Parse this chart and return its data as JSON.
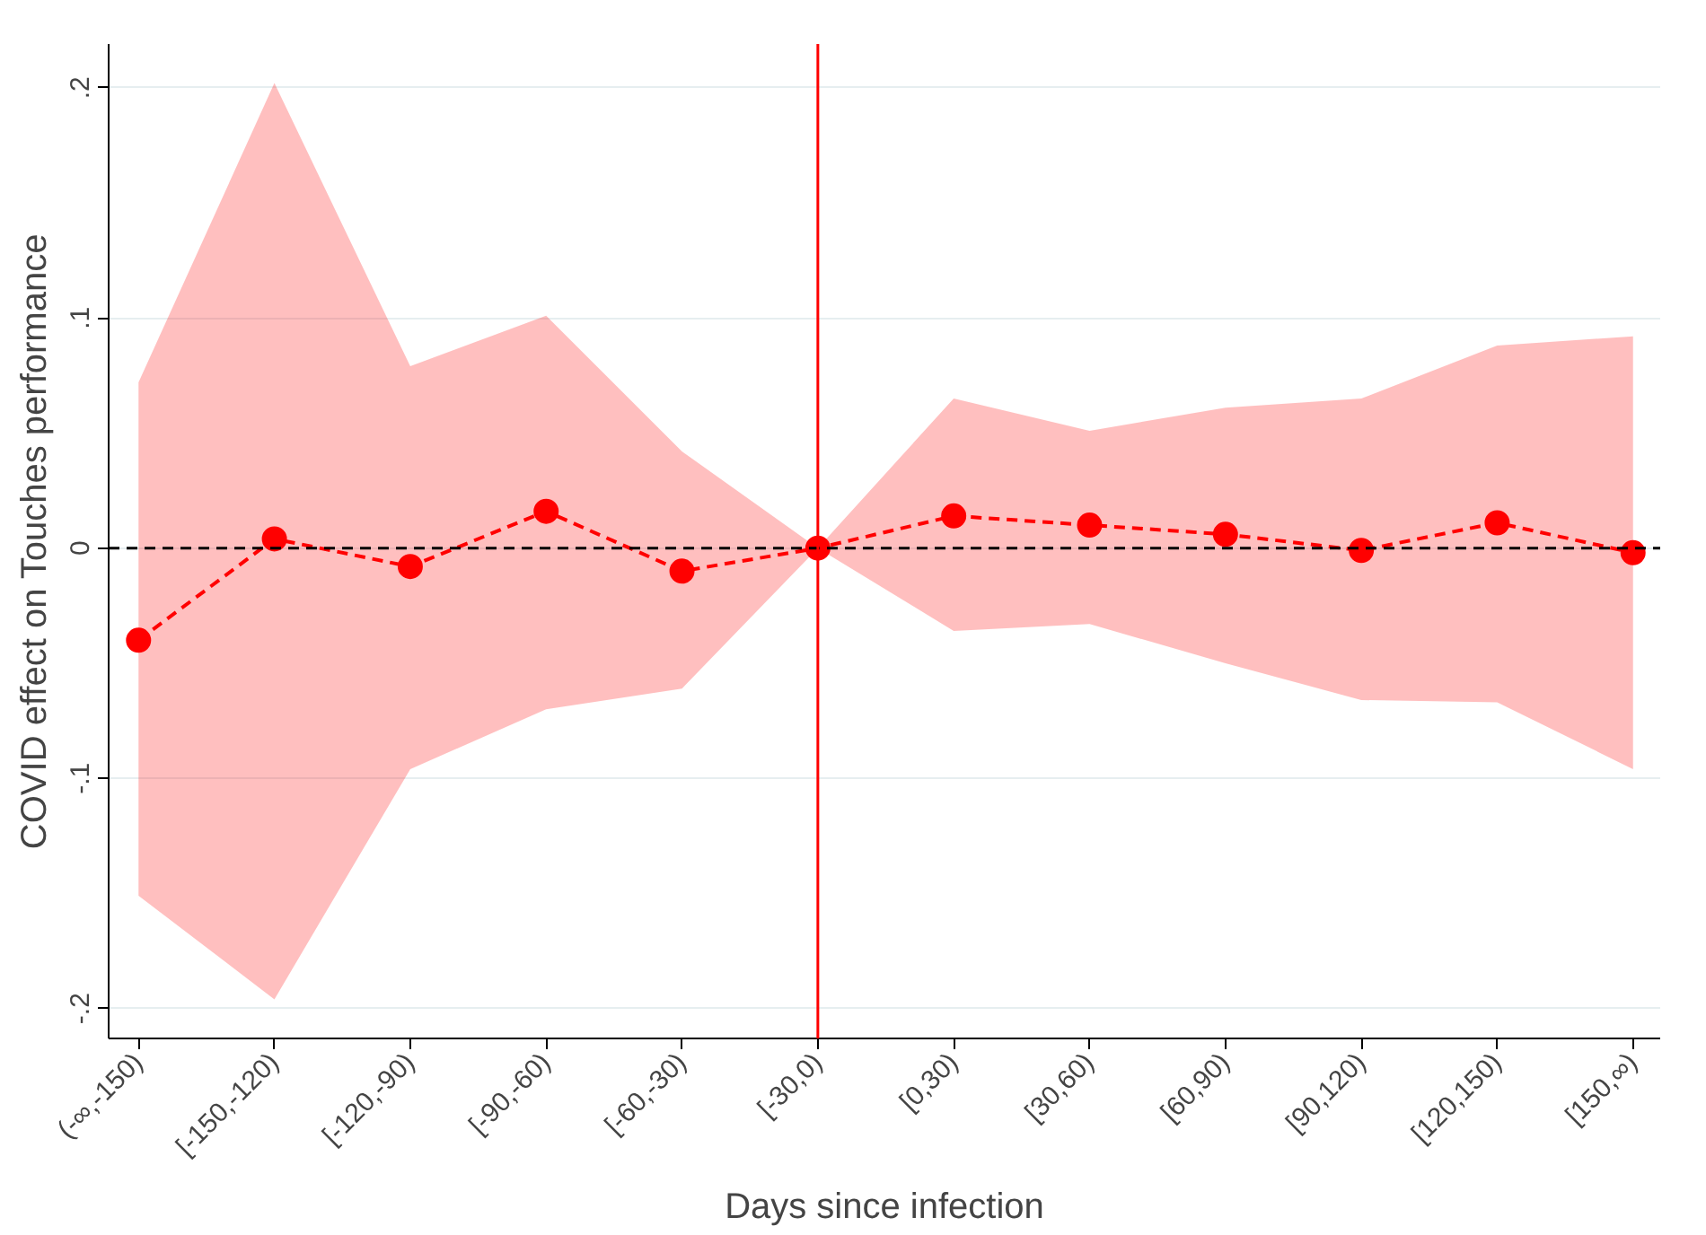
{
  "chart_data": {
    "type": "line",
    "xlabel": "Days since infection",
    "ylabel": "COVID effect on Touches performance",
    "categories": [
      "(-∞,-150)",
      "[-150,-120)",
      "[-120,-90)",
      "[-90,-60)",
      "[-60,-30)",
      "[-30,0)",
      "[0,30)",
      "[30,60)",
      "[60,90)",
      "[90,120)",
      "[120,150)",
      "[150,∞)"
    ],
    "series": [
      {
        "color": "#ff0000",
        "values": [
          -0.04,
          0.004,
          -0.008,
          0.016,
          -0.01,
          0,
          0.014,
          0.01,
          0.006,
          -0.001,
          0.011,
          -0.002
        ],
        "lower": [
          -0.151,
          -0.196,
          -0.096,
          -0.07,
          -0.061,
          0,
          -0.036,
          -0.033,
          -0.05,
          -0.066,
          -0.067,
          -0.096
        ],
        "upper": [
          0.072,
          0.202,
          0.079,
          0.101,
          0.042,
          0,
          0.065,
          0.051,
          0.061,
          0.065,
          0.088,
          0.092
        ]
      }
    ],
    "ylim": [
      -0.213,
      0.219
    ],
    "yticks": [
      {
        "value": -0.2,
        "label": "-.2"
      },
      {
        "value": -0.1,
        "label": "-.1"
      },
      0,
      {
        "value": 0.1,
        "label": ".1"
      },
      {
        "value": 0.2,
        "label": ".2"
      }
    ],
    "ref_lines": [
      {
        "axis": "y",
        "value": 0,
        "color": "#000000",
        "line_style": "dashed"
      },
      {
        "axis": "x",
        "value": "[-30,0)",
        "color": "#ff0000",
        "line_style": "solid"
      }
    ],
    "grid": "y",
    "marker": "circle",
    "line_style": "dashed"
  }
}
